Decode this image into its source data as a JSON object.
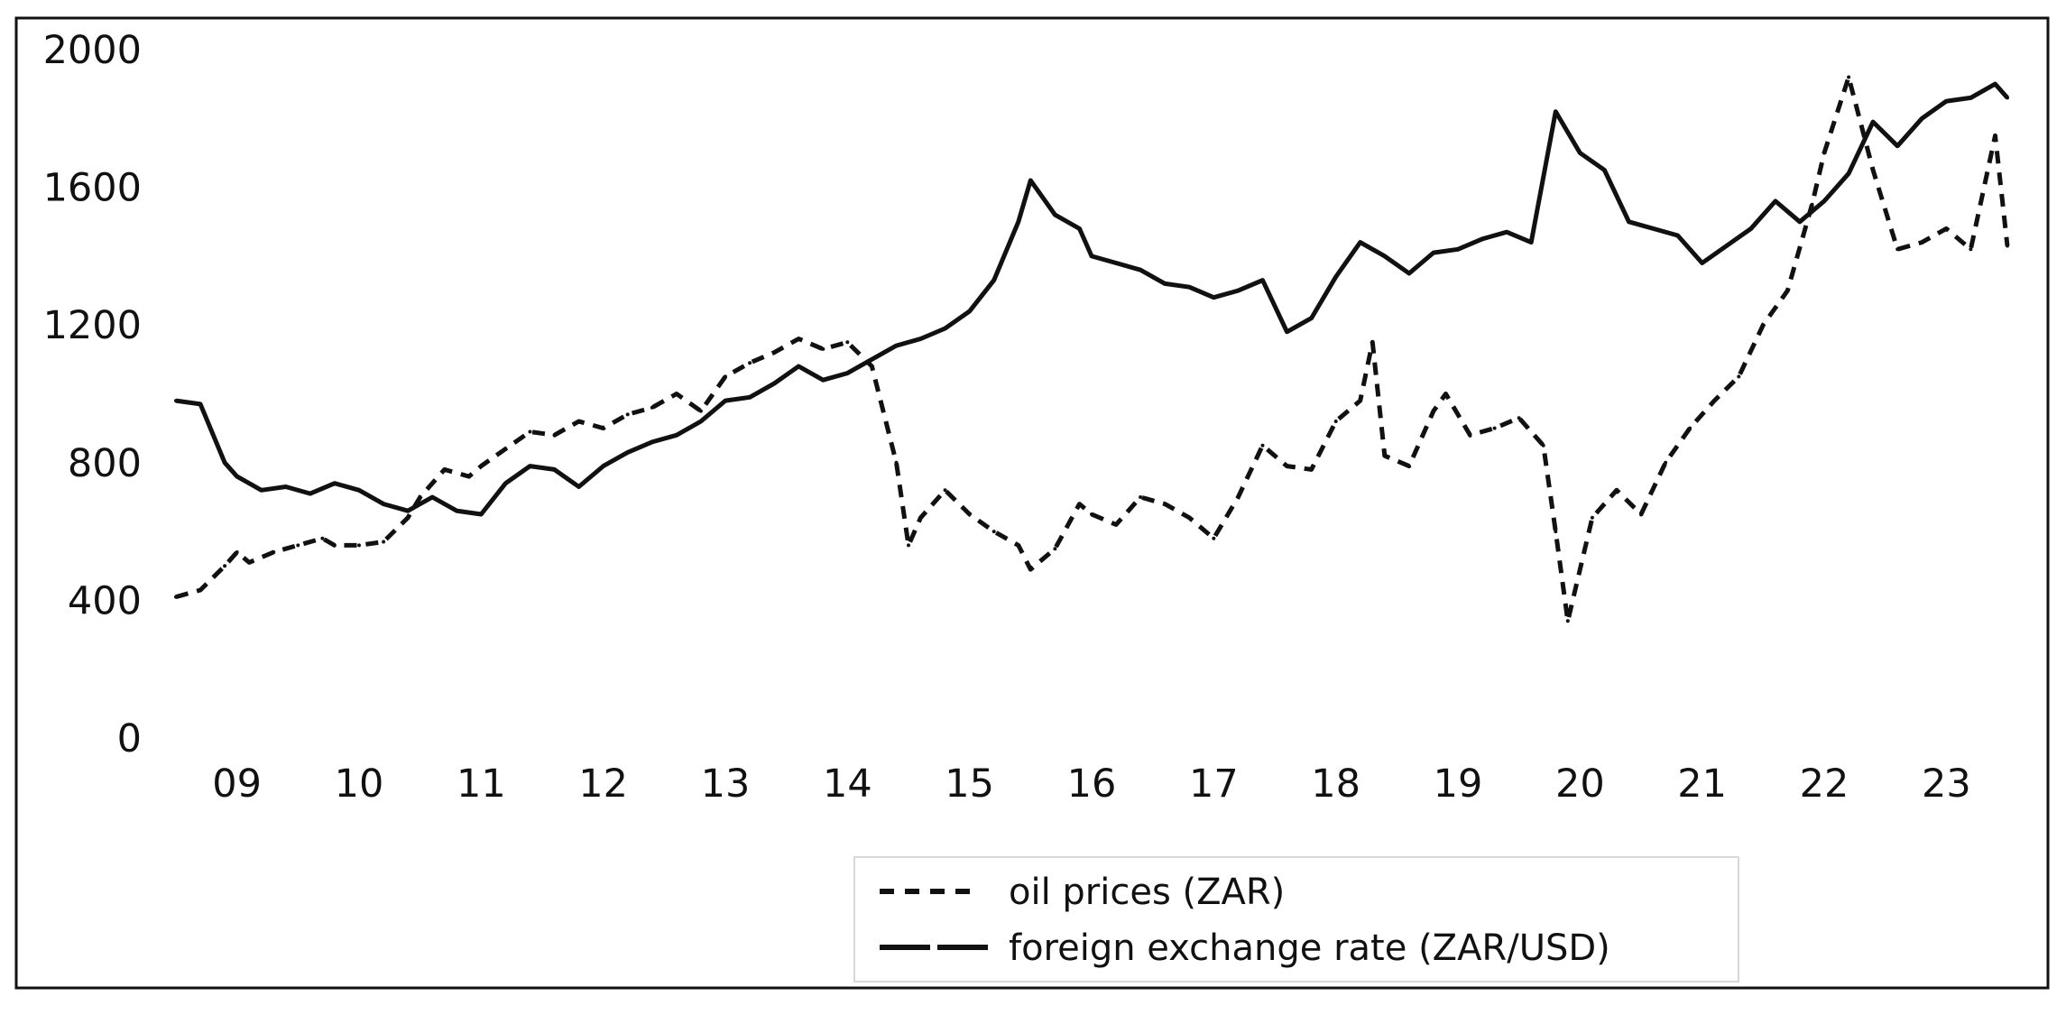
{
  "chart_data": {
    "type": "line",
    "title": "",
    "xlabel": "",
    "ylabel": "",
    "ylim": [
      0,
      2000
    ],
    "yticks": [
      "0",
      "400",
      "800",
      "1200",
      "1600",
      "2000"
    ],
    "xlim": [
      2008.5,
      2023.5
    ],
    "xticks": [
      "09",
      "10",
      "11",
      "12",
      "13",
      "14",
      "15",
      "16",
      "17",
      "18",
      "19",
      "20",
      "21",
      "22",
      "23"
    ],
    "grid": false,
    "legend_position": "bottom",
    "series": [
      {
        "name": "oil prices (ZAR)",
        "style": "dashed",
        "x": [
          2008.5,
          2008.7,
          2008.9,
          2009.0,
          2009.1,
          2009.3,
          2009.5,
          2009.7,
          2009.8,
          2010.0,
          2010.2,
          2010.4,
          2010.5,
          2010.7,
          2010.9,
          2011.0,
          2011.2,
          2011.4,
          2011.6,
          2011.8,
          2012.0,
          2012.2,
          2012.4,
          2012.6,
          2012.8,
          2013.0,
          2013.2,
          2013.4,
          2013.6,
          2013.8,
          2014.0,
          2014.2,
          2014.4,
          2014.5,
          2014.6,
          2014.8,
          2015.0,
          2015.2,
          2015.4,
          2015.5,
          2015.7,
          2015.9,
          2016.0,
          2016.2,
          2016.4,
          2016.6,
          2016.8,
          2017.0,
          2017.2,
          2017.4,
          2017.6,
          2017.8,
          2018.0,
          2018.2,
          2018.3,
          2018.4,
          2018.6,
          2018.8,
          2018.9,
          2019.1,
          2019.3,
          2019.5,
          2019.7,
          2019.8,
          2019.9,
          2020.1,
          2020.3,
          2020.5,
          2020.7,
          2020.9,
          2021.1,
          2021.3,
          2021.5,
          2021.7,
          2021.9,
          2022.0,
          2022.2,
          2022.4,
          2022.6,
          2022.8,
          2023.0,
          2023.2,
          2023.4,
          2023.5
        ],
        "values": [
          410,
          430,
          500,
          540,
          510,
          540,
          560,
          580,
          560,
          560,
          570,
          640,
          700,
          780,
          760,
          790,
          840,
          890,
          880,
          920,
          900,
          940,
          960,
          1000,
          950,
          1050,
          1090,
          1120,
          1160,
          1130,
          1150,
          1080,
          800,
          560,
          640,
          720,
          650,
          600,
          560,
          490,
          550,
          680,
          650,
          620,
          700,
          680,
          640,
          580,
          700,
          850,
          790,
          780,
          920,
          980,
          1150,
          820,
          790,
          950,
          1000,
          880,
          900,
          930,
          850,
          600,
          340,
          640,
          720,
          650,
          800,
          900,
          980,
          1050,
          1200,
          1300,
          1550,
          1700,
          1920,
          1650,
          1420,
          1440,
          1480,
          1420,
          1750,
          1430
        ]
      },
      {
        "name": "foreign exchange rate (ZAR/USD)",
        "style": "solid",
        "x": [
          2008.5,
          2008.7,
          2008.9,
          2009.0,
          2009.2,
          2009.4,
          2009.6,
          2009.8,
          2010.0,
          2010.2,
          2010.4,
          2010.6,
          2010.8,
          2011.0,
          2011.2,
          2011.4,
          2011.6,
          2011.8,
          2012.0,
          2012.2,
          2012.4,
          2012.6,
          2012.8,
          2013.0,
          2013.2,
          2013.4,
          2013.6,
          2013.8,
          2014.0,
          2014.2,
          2014.4,
          2014.6,
          2014.8,
          2015.0,
          2015.2,
          2015.4,
          2015.5,
          2015.7,
          2015.9,
          2016.0,
          2016.2,
          2016.4,
          2016.6,
          2016.8,
          2017.0,
          2017.2,
          2017.4,
          2017.6,
          2017.8,
          2018.0,
          2018.2,
          2018.4,
          2018.6,
          2018.8,
          2019.0,
          2019.2,
          2019.4,
          2019.6,
          2019.8,
          2020.0,
          2020.2,
          2020.4,
          2020.6,
          2020.8,
          2021.0,
          2021.2,
          2021.4,
          2021.6,
          2021.8,
          2022.0,
          2022.2,
          2022.4,
          2022.6,
          2022.8,
          2023.0,
          2023.2,
          2023.4,
          2023.5
        ],
        "values": [
          980,
          970,
          800,
          760,
          720,
          730,
          710,
          740,
          720,
          680,
          660,
          700,
          660,
          650,
          740,
          790,
          780,
          730,
          790,
          830,
          860,
          880,
          920,
          980,
          990,
          1030,
          1080,
          1040,
          1060,
          1100,
          1140,
          1160,
          1190,
          1240,
          1330,
          1500,
          1620,
          1520,
          1480,
          1400,
          1380,
          1360,
          1320,
          1310,
          1280,
          1300,
          1330,
          1180,
          1220,
          1340,
          1440,
          1400,
          1350,
          1410,
          1420,
          1450,
          1470,
          1440,
          1820,
          1700,
          1650,
          1500,
          1480,
          1460,
          1380,
          1430,
          1480,
          1560,
          1500,
          1560,
          1640,
          1790,
          1720,
          1800,
          1850,
          1860,
          1900,
          1860
        ]
      }
    ]
  }
}
